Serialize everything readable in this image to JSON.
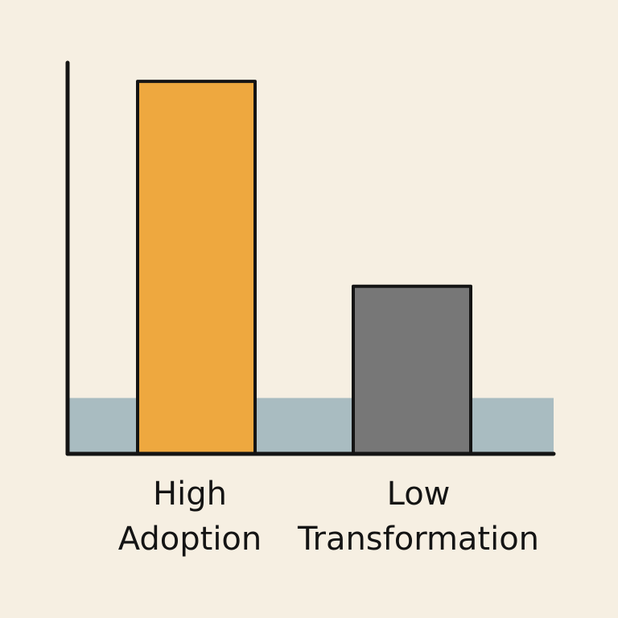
{
  "chart_data": {
    "type": "bar",
    "categories": [
      "High Adoption",
      "Low Transformation"
    ],
    "category_label_lines": [
      [
        "High",
        "Adoption"
      ],
      [
        "Low",
        "Transformation"
      ]
    ],
    "values": [
      100,
      45
    ],
    "baseline_band": 15,
    "ylim": [
      0,
      105
    ],
    "title": "",
    "xlabel": "",
    "ylabel": "",
    "grid": false,
    "legend": "none",
    "colors": {
      "background": "#f6efe2",
      "bars": [
        "#eea83f",
        "#777777"
      ],
      "band": "#a9bcc1",
      "axis": "#141414",
      "outline": "#141414"
    }
  }
}
